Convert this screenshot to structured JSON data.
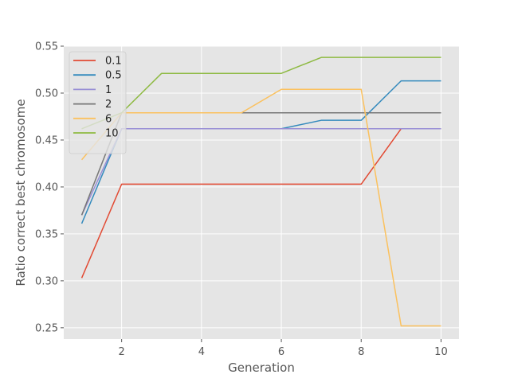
{
  "chart_data": {
    "type": "line",
    "title": "",
    "xlabel": "Generation",
    "ylabel": "Ratio correct best chromosome",
    "x": [
      1,
      2,
      3,
      4,
      5,
      6,
      7,
      8,
      9,
      10
    ],
    "xlim": [
      0.55,
      10.45
    ],
    "ylim": [
      0.238,
      0.55
    ],
    "xticks": [
      2,
      4,
      6,
      8,
      10
    ],
    "yticks": [
      0.25,
      0.3,
      0.35,
      0.4,
      0.45,
      0.5,
      0.55
    ],
    "ytick_labels": [
      "0.25",
      "0.30",
      "0.35",
      "0.40",
      "0.45",
      "0.50",
      "0.55"
    ],
    "grid": true,
    "legend_position": "top-left",
    "series": [
      {
        "name": "0.1",
        "color": "#E24A33",
        "values": [
          0.303,
          0.403,
          0.403,
          0.403,
          0.403,
          0.403,
          0.403,
          0.403,
          0.462,
          0.462
        ]
      },
      {
        "name": "0.5",
        "color": "#348ABD",
        "values": [
          0.361,
          0.462,
          0.462,
          0.462,
          0.462,
          0.462,
          0.471,
          0.471,
          0.513,
          0.513
        ]
      },
      {
        "name": "1",
        "color": "#988ED5",
        "values": [
          0.37,
          0.462,
          0.462,
          0.462,
          0.462,
          0.462,
          0.462,
          0.462,
          0.462,
          0.462
        ]
      },
      {
        "name": "2",
        "color": "#777777",
        "values": [
          0.37,
          0.479,
          0.479,
          0.479,
          0.479,
          0.479,
          0.479,
          0.479,
          0.479,
          0.479
        ]
      },
      {
        "name": "6",
        "color": "#FBC15E",
        "values": [
          0.429,
          0.479,
          0.479,
          0.479,
          0.479,
          0.504,
          0.504,
          0.504,
          0.252,
          0.252
        ]
      },
      {
        "name": "10",
        "color": "#8EBA42",
        "values": [
          0.462,
          0.479,
          0.521,
          0.521,
          0.521,
          0.521,
          0.538,
          0.538,
          0.538,
          0.538
        ]
      }
    ]
  }
}
